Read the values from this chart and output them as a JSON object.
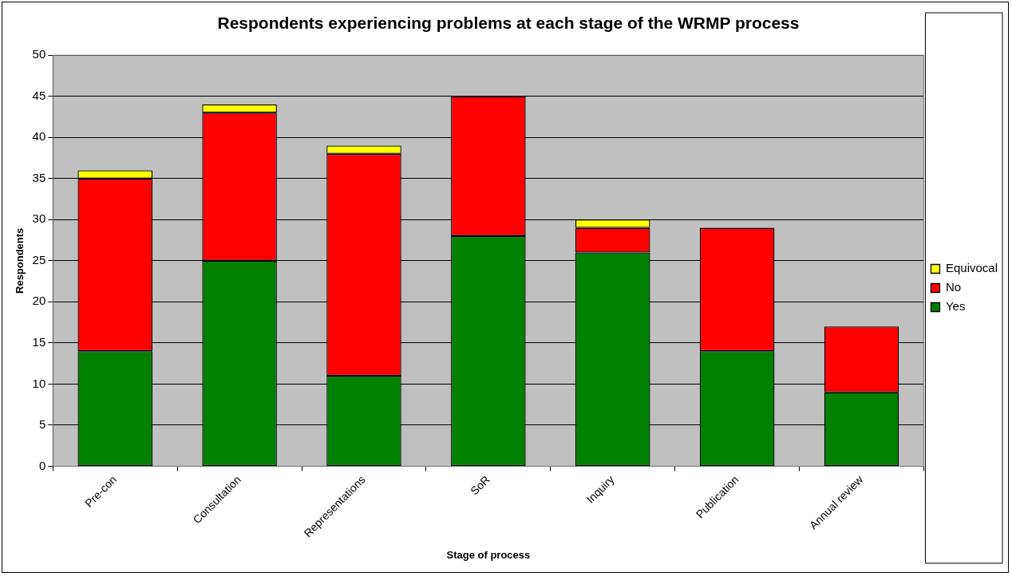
{
  "chart_data": {
    "type": "bar",
    "title": "Respondents experiencing problems at each stage of the WRMP process",
    "xlabel": "Stage of process",
    "ylabel": "Respondents",
    "categories": [
      "Pre-con",
      "Consultation",
      "Representations",
      "SoR",
      "Inquiry",
      "Publication",
      "Annual review"
    ],
    "series": [
      {
        "name": "Yes",
        "color": "#008000",
        "values": [
          14,
          25,
          11,
          28,
          26,
          14,
          9
        ]
      },
      {
        "name": "No",
        "color": "#ff0000",
        "values": [
          21,
          18,
          27,
          17,
          3,
          15,
          8
        ]
      },
      {
        "name": "Equivocal",
        "color": "#ffff00",
        "values": [
          1,
          1,
          1,
          0,
          1,
          0,
          0
        ]
      }
    ],
    "stacked": true,
    "ylim": [
      0,
      50
    ],
    "yticks": [
      0,
      5,
      10,
      15,
      20,
      25,
      30,
      35,
      40,
      45,
      50
    ],
    "grid": "y",
    "legend": "right"
  }
}
